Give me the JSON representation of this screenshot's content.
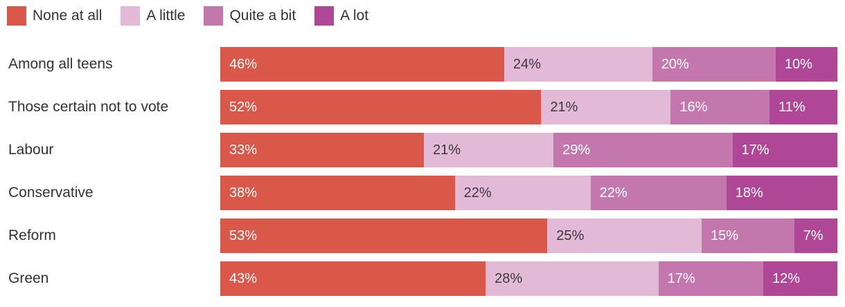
{
  "page": {
    "background": "#ffffff",
    "text_color": "#333333"
  },
  "chart_data": {
    "type": "bar",
    "stacked": true,
    "orientation": "horizontal",
    "title": "",
    "xlabel": "",
    "ylabel": "",
    "xlim": [
      0,
      100
    ],
    "grid": false,
    "legend_position": "top",
    "value_suffix": "%",
    "categories": [
      "Among all teens",
      "Those certain not to vote",
      "Labour",
      "Conservative",
      "Reform",
      "Green"
    ],
    "series": [
      {
        "name": "None at all",
        "color": "#D9584A",
        "text_color": "#ffffff",
        "values": [
          46,
          52,
          33,
          38,
          53,
          43
        ]
      },
      {
        "name": "A little",
        "color": "#E2BAD7",
        "text_color": "#3a3a3a",
        "values": [
          24,
          21,
          21,
          22,
          25,
          28
        ]
      },
      {
        "name": "Quite a bit",
        "color": "#C377AD",
        "text_color": "#ffffff",
        "values": [
          20,
          16,
          29,
          22,
          15,
          17
        ]
      },
      {
        "name": "A lot",
        "color": "#AF4796",
        "text_color": "#ffffff",
        "values": [
          10,
          11,
          17,
          18,
          7,
          12
        ]
      }
    ]
  }
}
